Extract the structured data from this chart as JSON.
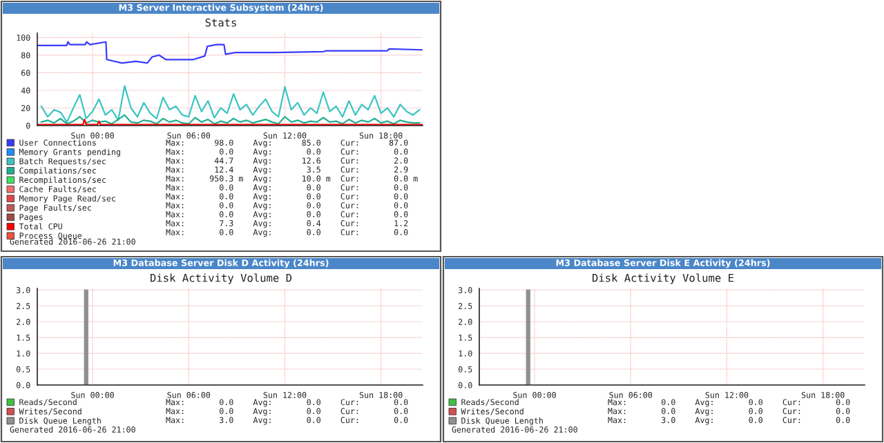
{
  "chart_data": [
    {
      "type": "line",
      "title": "M3 Server Interactive Subsystem (24hrs)",
      "subtitle": "Stats",
      "series": [
        {
          "name": "User Connections",
          "color": "#3a3aff",
          "x": [
            "2016-06-25T20:33",
            "2016-06-25T22:23",
            "2016-06-25T22:28",
            "2016-06-25T22:35",
            "2016-06-25T23:32",
            "2016-06-25T23:38",
            "2016-06-25T23:50",
            "2016-06-26T00:50",
            "2016-06-26T00:53",
            "2016-06-26T01:50",
            "2016-06-26T02:42",
            "2016-06-26T03:25",
            "2016-06-26T03:43",
            "2016-06-26T04:09",
            "2016-06-26T04:34",
            "2016-06-26T06:18",
            "2016-06-26T07:00",
            "2016-06-26T07:10",
            "2016-06-26T07:44",
            "2016-06-26T08:12",
            "2016-06-26T08:18",
            "2016-06-26T08:54",
            "2016-06-26T11:24",
            "2016-06-26T14:24",
            "2016-06-26T14:36",
            "2016-06-26T18:24",
            "2016-06-26T18:30",
            "2016-06-26T20:36"
          ],
          "values": [
            91,
            91,
            95,
            92,
            92,
            95,
            92,
            95,
            75,
            71,
            73,
            71,
            78,
            80,
            75,
            75,
            79,
            90,
            92,
            92,
            81,
            83,
            83,
            84,
            85,
            85,
            87,
            86
          ]
        },
        {
          "name": "Memory Grants pending",
          "color": "#1e90ff",
          "values": [
            null
          ]
        },
        {
          "name": "Batch Requests/sec",
          "color": "#3cc4c4",
          "x": [
            "2016-06-25T20:48",
            "2016-06-25T21:12",
            "2016-06-25T21:36",
            "2016-06-25T22:00",
            "2016-06-25T22:24",
            "2016-06-25T22:48",
            "2016-06-25T23:12",
            "2016-06-25T23:36",
            "2016-06-26T00:00",
            "2016-06-26T00:24",
            "2016-06-26T00:48",
            "2016-06-26T01:12",
            "2016-06-26T01:36",
            "2016-06-26T02:00",
            "2016-06-26T02:24",
            "2016-06-26T02:48",
            "2016-06-26T03:12",
            "2016-06-26T03:36",
            "2016-06-26T04:00",
            "2016-06-26T04:24",
            "2016-06-26T04:48",
            "2016-06-26T05:12",
            "2016-06-26T05:36",
            "2016-06-26T06:00",
            "2016-06-26T06:24",
            "2016-06-26T06:48",
            "2016-06-26T07:12",
            "2016-06-26T07:36",
            "2016-06-26T08:00",
            "2016-06-26T08:24",
            "2016-06-26T08:48",
            "2016-06-26T09:12",
            "2016-06-26T09:36",
            "2016-06-26T10:00",
            "2016-06-26T10:24",
            "2016-06-26T10:48",
            "2016-06-26T11:12",
            "2016-06-26T11:36",
            "2016-06-26T12:00",
            "2016-06-26T12:24",
            "2016-06-26T12:48",
            "2016-06-26T13:12",
            "2016-06-26T13:36",
            "2016-06-26T14:00",
            "2016-06-26T14:24",
            "2016-06-26T14:48",
            "2016-06-26T15:12",
            "2016-06-26T15:36",
            "2016-06-26T16:00",
            "2016-06-26T16:24",
            "2016-06-26T16:48",
            "2016-06-26T17:12",
            "2016-06-26T17:36",
            "2016-06-26T18:00",
            "2016-06-26T18:24",
            "2016-06-26T18:48",
            "2016-06-26T19:12",
            "2016-06-26T19:36",
            "2016-06-26T20:00",
            "2016-06-26T20:24"
          ],
          "values": [
            22,
            10,
            18,
            15,
            4,
            20,
            35,
            8,
            16,
            30,
            12,
            18,
            6,
            45,
            20,
            10,
            26,
            14,
            8,
            32,
            18,
            22,
            12,
            10,
            34,
            16,
            28,
            9,
            20,
            14,
            36,
            18,
            24,
            12,
            22,
            30,
            16,
            10,
            44,
            18,
            26,
            12,
            20,
            14,
            38,
            16,
            22,
            10,
            28,
            12,
            24,
            18,
            34,
            14,
            20,
            10,
            24,
            16,
            12,
            18
          ]
        },
        {
          "name": "Compilations/sec",
          "color": "#20b090",
          "x": [
            "2016-06-25T20:48",
            "2016-06-25T21:12",
            "2016-06-25T21:36",
            "2016-06-25T22:00",
            "2016-06-25T22:24",
            "2016-06-25T22:48",
            "2016-06-25T23:12",
            "2016-06-25T23:36",
            "2016-06-26T00:00",
            "2016-06-26T00:24",
            "2016-06-26T00:48",
            "2016-06-26T01:12",
            "2016-06-26T01:36",
            "2016-06-26T02:00",
            "2016-06-26T02:24",
            "2016-06-26T02:48",
            "2016-06-26T03:12",
            "2016-06-26T03:36",
            "2016-06-26T04:00",
            "2016-06-26T04:24",
            "2016-06-26T04:48",
            "2016-06-26T05:12",
            "2016-06-26T05:36",
            "2016-06-26T06:00",
            "2016-06-26T06:24",
            "2016-06-26T06:48",
            "2016-06-26T07:12",
            "2016-06-26T07:36",
            "2016-06-26T08:00",
            "2016-06-26T08:24",
            "2016-06-26T08:48",
            "2016-06-26T09:12",
            "2016-06-26T09:36",
            "2016-06-26T10:00",
            "2016-06-26T10:24",
            "2016-06-26T10:48",
            "2016-06-26T11:12",
            "2016-06-26T11:36",
            "2016-06-26T12:00",
            "2016-06-26T12:24",
            "2016-06-26T12:48",
            "2016-06-26T13:12",
            "2016-06-26T13:36",
            "2016-06-26T14:00",
            "2016-06-26T14:24",
            "2016-06-26T14:48",
            "2016-06-26T15:12",
            "2016-06-26T15:36",
            "2016-06-26T16:00",
            "2016-06-26T16:24",
            "2016-06-26T16:48",
            "2016-06-26T17:12",
            "2016-06-26T17:36",
            "2016-06-26T18:00",
            "2016-06-26T18:24",
            "2016-06-26T18:48",
            "2016-06-26T19:12",
            "2016-06-26T19:36",
            "2016-06-26T20:00",
            "2016-06-26T20:24"
          ],
          "values": [
            4,
            6,
            3,
            8,
            2,
            5,
            10,
            3,
            6,
            4,
            5,
            2,
            7,
            12,
            4,
            3,
            6,
            5,
            2,
            8,
            4,
            6,
            3,
            2,
            9,
            4,
            7,
            2,
            5,
            3,
            8,
            4,
            6,
            3,
            5,
            7,
            4,
            2,
            10,
            4,
            6,
            3,
            5,
            4,
            9,
            4,
            5,
            2,
            7,
            3,
            6,
            4,
            8,
            3,
            5,
            2,
            6,
            4,
            3,
            3
          ]
        },
        {
          "name": "Recompilations/sec",
          "color": "#40e060",
          "values": [
            null
          ]
        },
        {
          "name": "Cache Faults/sec",
          "color": "#f07070",
          "values": [
            null
          ]
        },
        {
          "name": "Memory Page Read/sec",
          "color": "#e04848",
          "values": [
            null
          ]
        },
        {
          "name": "Page Faults/sec",
          "color": "#c05858",
          "values": [
            null
          ]
        },
        {
          "name": "Pages",
          "color": "#a04848",
          "values": [
            null
          ]
        },
        {
          "name": "Total CPU",
          "color": "#ff0000",
          "x": [
            "2016-06-25T20:33",
            "2016-06-25T23:24",
            "2016-06-25T23:30",
            "2016-06-25T23:36",
            "2016-06-26T00:18",
            "2016-06-26T00:24",
            "2016-06-26T00:30",
            "2016-06-26T20:36"
          ],
          "values": [
            1,
            1,
            7,
            1,
            1,
            5,
            1,
            1
          ]
        },
        {
          "name": "Process Queue",
          "color": "#f05040",
          "values": [
            null
          ]
        }
      ],
      "xlim": [
        "2016-06-25T20:33",
        "2016-06-26T20:36"
      ],
      "ylim": [
        0,
        105
      ],
      "xticks": [
        {
          "value": "2016-06-26T00:00",
          "label": "Sun 00:00"
        },
        {
          "value": "2016-06-26T06:00",
          "label": "Sun 06:00"
        },
        {
          "value": "2016-06-26T12:00",
          "label": "Sun 12:00"
        },
        {
          "value": "2016-06-26T18:00",
          "label": "Sun 18:00"
        }
      ],
      "yticks": [
        0,
        20,
        40,
        60,
        80,
        100
      ],
      "grid": true,
      "legend": "bottom",
      "annotations": [
        "Max:      98.0    Avg:      85.0    Cur:      87.0",
        "Max:       0.0    Avg:       0.0    Cur:       0.0",
        "Max:      44.7    Avg:      12.6    Cur:       2.0",
        "Max:      12.4    Avg:       3.5    Cur:       2.9",
        "Max:     950.3 m  Avg:      10.0 m  Cur:       0.0 m",
        "Max:       0.0    Avg:       0.0    Cur:       0.0",
        "Max:       0.0    Avg:       0.0    Cur:       0.0",
        "Max:       0.0    Avg:       0.0    Cur:       0.0",
        "Max:       0.0    Avg:       0.0    Cur:       0.0",
        "Max:       7.3    Avg:       0.4    Cur:       1.2",
        "Max:       0.0    Avg:       0.0    Cur:       0.0",
        "Generated 2016-06-26 21:00"
      ]
    },
    {
      "type": "line",
      "title": "M3 Database Server Disk D Activity (24hrs)",
      "subtitle": "Disk Activity Volume D",
      "series": [
        {
          "name": "Reads/Second",
          "color": "#40c040",
          "values": [
            null
          ]
        },
        {
          "name": "Writes/Second",
          "color": "#d05050",
          "values": [
            null
          ]
        },
        {
          "name": "Disk Queue Length",
          "color": "#909090",
          "type": "area",
          "x": [
            "2016-06-25T20:33",
            "2016-06-25T23:30",
            "2016-06-25T23:30",
            "2016-06-25T23:42",
            "2016-06-25T23:42",
            "2016-06-26T20:36"
          ],
          "values": [
            0,
            0,
            3.0,
            3.0,
            0,
            0
          ]
        }
      ],
      "xlim": [
        "2016-06-25T20:33",
        "2016-06-26T20:36"
      ],
      "ylim": [
        0,
        3.05
      ],
      "xticks": [
        {
          "value": "2016-06-26T00:00",
          "label": "Sun 00:00"
        },
        {
          "value": "2016-06-26T06:00",
          "label": "Sun 06:00"
        },
        {
          "value": "2016-06-26T12:00",
          "label": "Sun 12:00"
        },
        {
          "value": "2016-06-26T18:00",
          "label": "Sun 18:00"
        }
      ],
      "yticks": [
        {
          "value": 0,
          "label": "0.0"
        },
        {
          "value": 0.5,
          "label": "0.5"
        },
        {
          "value": 1,
          "label": "1.0"
        },
        {
          "value": 1.5,
          "label": "1.5"
        },
        {
          "value": 2,
          "label": "2.0"
        },
        {
          "value": 2.5,
          "label": "2.5"
        },
        {
          "value": 3,
          "label": "3.0"
        }
      ],
      "grid": true,
      "legend": "bottom",
      "annotations": [
        "Max:       0.0    Avg:       0.0    Cur:       0.0",
        "Max:       0.0    Avg:       0.0    Cur:       0.0",
        "Max:       3.0    Avg:       0.0    Cur:       0.0",
        "Generated 2016-06-26 21:00"
      ]
    },
    {
      "type": "line",
      "title": "M3 Database Server Disk E Activity (24hrs)",
      "subtitle": "Disk Activity Volume E",
      "series": [
        {
          "name": "Reads/Second",
          "color": "#40c040",
          "values": [
            null
          ]
        },
        {
          "name": "Writes/Second",
          "color": "#d05050",
          "values": [
            null
          ]
        },
        {
          "name": "Disk Queue Length",
          "color": "#909090",
          "type": "area",
          "x": [
            "2016-06-25T20:33",
            "2016-06-25T23:30",
            "2016-06-25T23:30",
            "2016-06-25T23:42",
            "2016-06-25T23:42",
            "2016-06-26T20:36"
          ],
          "values": [
            0,
            0,
            3.0,
            3.0,
            0,
            0
          ]
        }
      ],
      "xlim": [
        "2016-06-25T20:33",
        "2016-06-26T20:36"
      ],
      "ylim": [
        0,
        3.05
      ],
      "xticks": [
        {
          "value": "2016-06-26T00:00",
          "label": "Sun 00:00"
        },
        {
          "value": "2016-06-26T06:00",
          "label": "Sun 06:00"
        },
        {
          "value": "2016-06-26T12:00",
          "label": "Sun 12:00"
        },
        {
          "value": "2016-06-26T18:00",
          "label": "Sun 18:00"
        }
      ],
      "yticks": [
        {
          "value": 0,
          "label": "0.0"
        },
        {
          "value": 0.5,
          "label": "0.5"
        },
        {
          "value": 1,
          "label": "1.0"
        },
        {
          "value": 1.5,
          "label": "1.5"
        },
        {
          "value": 2,
          "label": "2.0"
        },
        {
          "value": 2.5,
          "label": "2.5"
        },
        {
          "value": 3,
          "label": "3.0"
        }
      ],
      "grid": true,
      "legend": "bottom",
      "annotations": [
        "Max:       0.0    Avg:       0.0    Cur:       0.0",
        "Max:       0.0    Avg:       0.0    Cur:       0.0",
        "Max:       3.0    Avg:       0.0    Cur:       0.0",
        "Generated 2016-06-26 21:00"
      ]
    }
  ]
}
